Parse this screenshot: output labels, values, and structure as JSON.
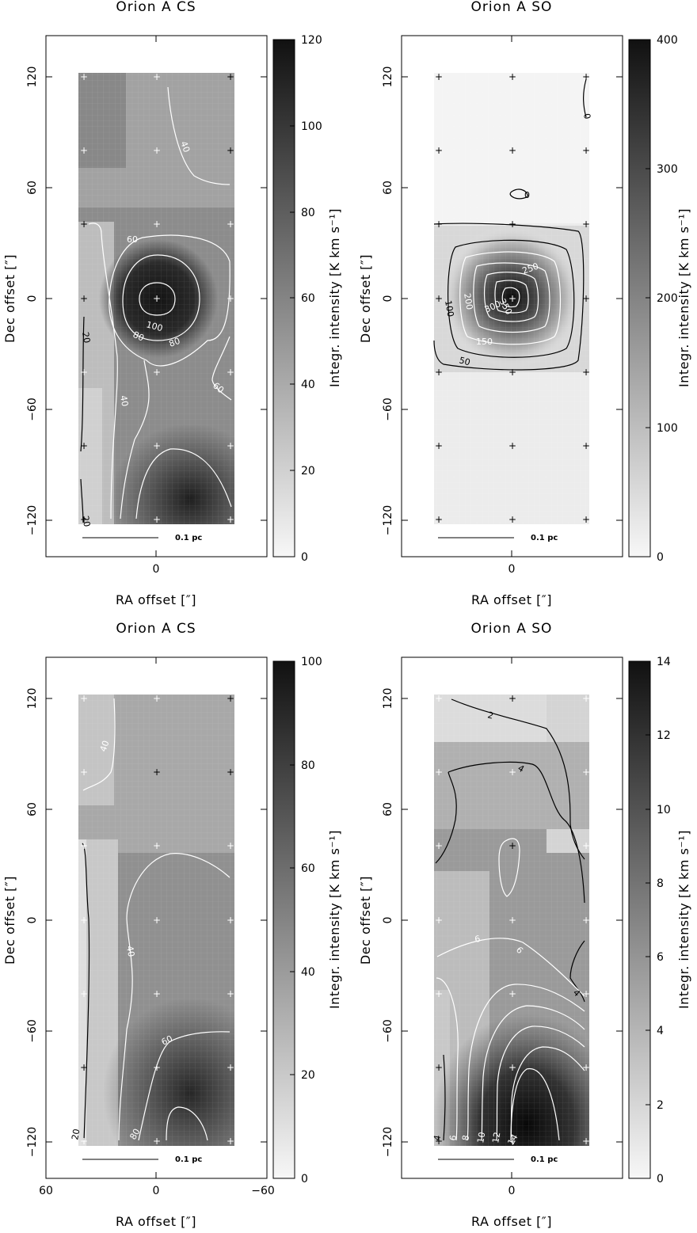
{
  "chart_data": [
    {
      "type": "heatmap",
      "title": "Orion A   CS",
      "xlabel": "RA offset   [″]",
      "ylabel": "Dec offset   [″]",
      "colorbar_label": "Integr. intensity   [K km s⁻¹]",
      "x_ticks": [
        "0"
      ],
      "y_ticks": [
        "−120",
        "−60",
        "0",
        "60",
        "120"
      ],
      "colorbar_ticks": [
        "0",
        "20",
        "40",
        "60",
        "80",
        "100",
        "120"
      ],
      "colorbar_range": [
        0,
        120
      ],
      "scale_bar_label": "0.1 pc",
      "contour_levels": [
        "20",
        "40",
        "60",
        "80",
        "100"
      ],
      "contour_labels": [
        {
          "text": "40",
          "x": -34,
          "y": 88
        },
        {
          "text": "60",
          "x": 22,
          "y": 34
        },
        {
          "text": "100",
          "x": 2,
          "y": -12
        },
        {
          "text": "80",
          "x": 20,
          "y": -20
        },
        {
          "text": "80",
          "x": -24,
          "y": -18
        },
        {
          "text": "20",
          "x": 81,
          "y": -16
        },
        {
          "text": "40",
          "x": 60,
          "y": -54
        },
        {
          "text": "60",
          "x": -68,
          "y": -48
        },
        {
          "text": "20",
          "x": 81,
          "y": -118
        }
      ]
    },
    {
      "type": "heatmap",
      "title": "Orion A   SO",
      "xlabel": "RA offset   [″]",
      "ylabel": "Dec offset   [″]",
      "colorbar_label": "Integr. intensity   [K km s⁻¹]",
      "x_ticks": [
        "0"
      ],
      "y_ticks": [
        "−120",
        "−60",
        "0",
        "60",
        "120"
      ],
      "colorbar_ticks": [
        "0",
        "100",
        "200",
        "300",
        "400"
      ],
      "colorbar_range": [
        0,
        400
      ],
      "scale_bar_label": "0.1 pc",
      "contour_levels": [
        "0",
        "50",
        "100",
        "150",
        "200",
        "250",
        "300",
        "350"
      ],
      "contour_labels": [
        {
          "text": "0",
          "x": -88,
          "y": 100
        },
        {
          "text": "0",
          "x": -8,
          "y": 57
        },
        {
          "text": "250",
          "x": -24,
          "y": 16
        },
        {
          "text": "100",
          "x": 76,
          "y": -2
        },
        {
          "text": "200",
          "x": 50,
          "y": 0
        },
        {
          "text": "350",
          "x": 6,
          "y": -4
        },
        {
          "text": "300",
          "x": 16,
          "y": -4
        },
        {
          "text": "150",
          "x": 22,
          "y": -22
        },
        {
          "text": "50",
          "x": 56,
          "y": -34
        }
      ]
    },
    {
      "type": "heatmap",
      "title": "Orion A    CS",
      "xlabel": "RA offset   [″]",
      "ylabel": "Dec offset   [″]",
      "colorbar_label": "Integr. intensity   [K km s⁻¹]",
      "x_ticks": [
        "60",
        "0",
        "−60"
      ],
      "y_ticks": [
        "−120",
        "−60",
        "0",
        "60",
        "120"
      ],
      "colorbar_ticks": [
        "0",
        "20",
        "40",
        "60",
        "80",
        "100"
      ],
      "colorbar_range": [
        0,
        100
      ],
      "scale_bar_label": "0.1 pc",
      "contour_levels": [
        "20",
        "40",
        "60",
        "80"
      ],
      "contour_labels": [
        {
          "text": "40",
          "x": 26,
          "y": 88
        },
        {
          "text": "40",
          "x": 14,
          "y": -18
        },
        {
          "text": "60",
          "x": 8,
          "y": -63
        },
        {
          "text": "20",
          "x": 40,
          "y": -118
        },
        {
          "text": "80",
          "x": 12,
          "y": -117
        }
      ]
    },
    {
      "type": "heatmap",
      "title": "Orion A    SO",
      "xlabel": "RA offset   [″]",
      "ylabel": "Dec offset   [″]",
      "colorbar_label": "Integr. intensity   [K km s⁻¹]",
      "x_ticks": [
        "0"
      ],
      "y_ticks": [
        "−120",
        "−60",
        "0",
        "60",
        "120"
      ],
      "colorbar_ticks": [
        "0",
        "2",
        "4",
        "6",
        "8",
        "10",
        "12",
        "14"
      ],
      "colorbar_range": [
        0,
        14
      ],
      "scale_bar_label": "0.1 pc",
      "contour_levels": [
        "2",
        "4",
        "6",
        "8",
        "10",
        "12",
        "14"
      ],
      "contour_labels": [
        {
          "text": "2",
          "x": 12,
          "y": 108
        },
        {
          "text": "4",
          "x": -4,
          "y": 82
        },
        {
          "text": "6",
          "x": 18,
          "y": -10
        },
        {
          "text": "6",
          "x": -4,
          "y": -12
        },
        {
          "text": "4",
          "x": -36,
          "y": -56
        },
        {
          "text": "4",
          "x": 40,
          "y": -119
        },
        {
          "text": "6",
          "x": 28,
          "y": -118
        },
        {
          "text": "8",
          "x": 22,
          "y": -118
        },
        {
          "text": "10",
          "x": 14,
          "y": -118
        },
        {
          "text": "12",
          "x": 4,
          "y": -118
        },
        {
          "text": "14",
          "x": -2,
          "y": -118
        }
      ]
    }
  ]
}
